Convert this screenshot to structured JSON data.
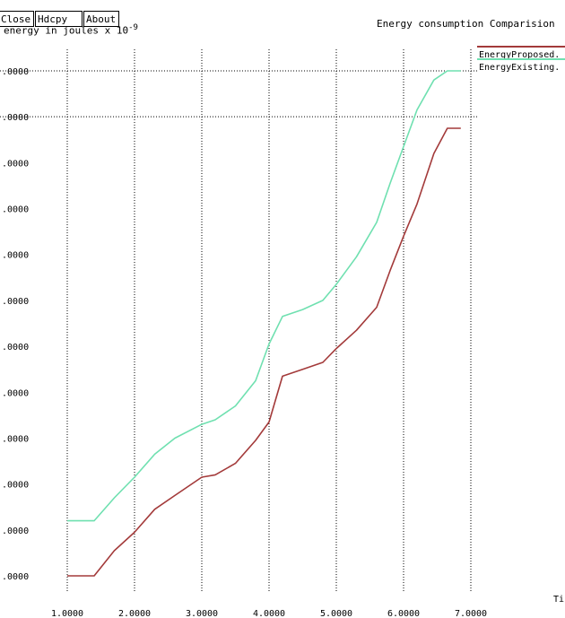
{
  "toolbar": {
    "close_label": "Close",
    "hdcpy_label": "Hdcpy",
    "about_label": "About"
  },
  "colors": {
    "proposed": "#a33a3a",
    "existing": "#6fe0b0",
    "grid": "#000000"
  },
  "chart_data": {
    "type": "line",
    "title": "Energy consumption Comparision",
    "ylabel": "energy in joules x 10",
    "ylabel_exponent": "-9",
    "xlabel": "Ti",
    "xlim": [
      1.0,
      7.0
    ],
    "ylim": [
      0,
      11
    ],
    "grid": true,
    "legend_position": "top-right",
    "x_ticks": [
      1,
      2,
      3,
      4,
      5,
      6,
      7
    ],
    "x_tick_labels": [
      "1.0000",
      "2.0000",
      "3.0000",
      "4.0000",
      "5.0000",
      "6.0000",
      "7.0000"
    ],
    "y_ticks": [
      0,
      1,
      2,
      3,
      4,
      5,
      6,
      7,
      8,
      9,
      10,
      11
    ],
    "y_tick_labels": [
      ".0000",
      ".0000",
      ".0000",
      ".0000",
      ".0000",
      ".0000",
      ".0000",
      ".0000",
      ".0000",
      ".0000",
      ".0000",
      ".0000"
    ],
    "series": [
      {
        "name": "EnergyProposed.",
        "x": [
          1.0,
          1.4,
          1.7,
          2.0,
          2.3,
          2.6,
          3.0,
          3.2,
          3.5,
          3.8,
          4.0,
          4.2,
          4.5,
          4.8,
          5.0,
          5.3,
          5.6,
          5.8,
          6.0,
          6.2,
          6.45,
          6.65,
          6.85
        ],
        "y": [
          0.0,
          0.0,
          0.55,
          0.95,
          1.45,
          1.75,
          2.15,
          2.2,
          2.45,
          2.95,
          3.35,
          4.35,
          4.5,
          4.65,
          4.95,
          5.35,
          5.85,
          6.65,
          7.4,
          8.1,
          9.2,
          9.75,
          9.75
        ]
      },
      {
        "name": "EnergyExisting.",
        "x": [
          1.0,
          1.4,
          1.7,
          2.0,
          2.3,
          2.6,
          3.0,
          3.2,
          3.5,
          3.8,
          4.0,
          4.2,
          4.5,
          4.8,
          5.0,
          5.3,
          5.6,
          5.8,
          6.0,
          6.2,
          6.45,
          6.65,
          6.85
        ],
        "y": [
          1.2,
          1.2,
          1.7,
          2.15,
          2.65,
          3.0,
          3.3,
          3.4,
          3.7,
          4.25,
          5.05,
          5.65,
          5.8,
          6.0,
          6.35,
          6.95,
          7.7,
          8.55,
          9.35,
          10.15,
          10.8,
          11.0,
          11.0
        ]
      }
    ]
  }
}
